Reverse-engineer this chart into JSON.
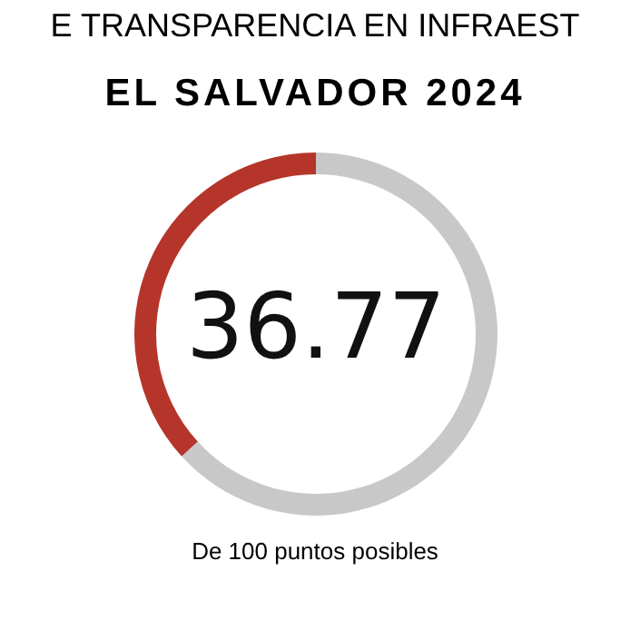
{
  "chart_data": {
    "type": "donut",
    "title": "E TRANSPARENCIA EN INFRAEST",
    "subtitle": "EL SALVADOR 2024",
    "categories": [
      null,
      null
    ],
    "values": [
      36.77,
      63.23
    ],
    "colors": [
      "#b5352b",
      "#c8c8c8"
    ],
    "annotations": [
      "36.77",
      "De 100 puntos posibles"
    ],
    "legend": false
  }
}
